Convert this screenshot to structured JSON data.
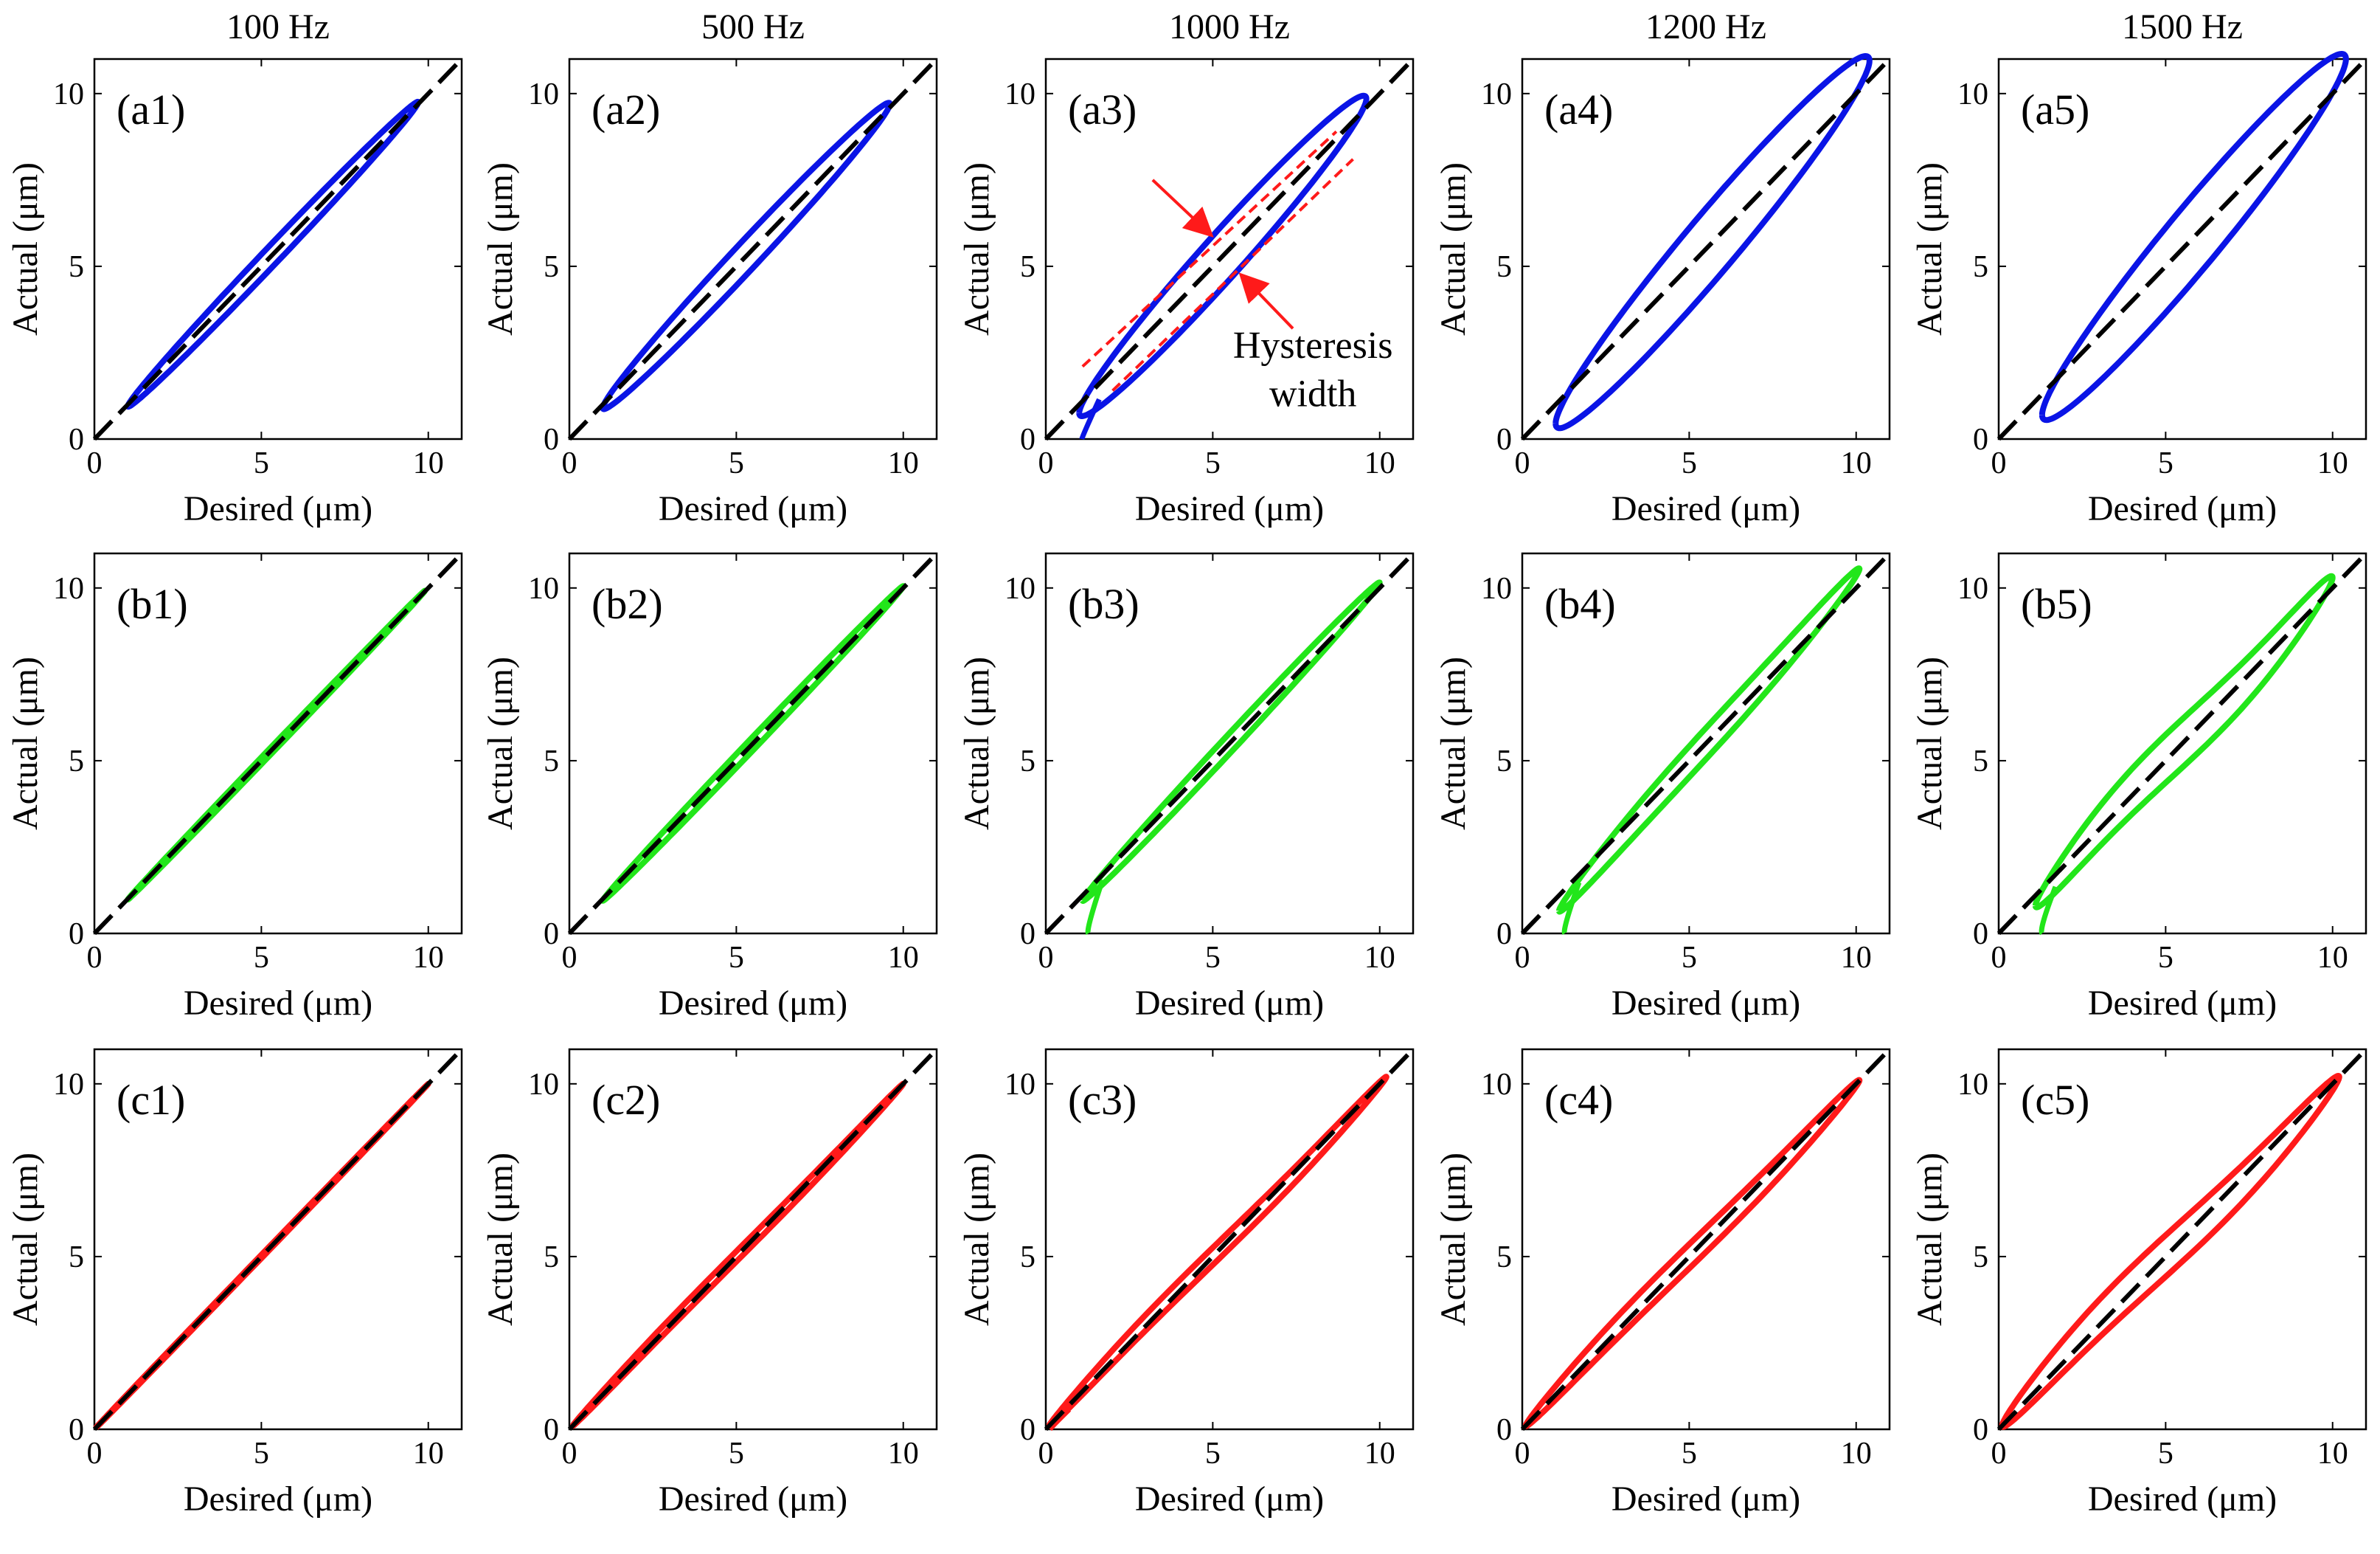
{
  "column_titles": [
    "100 Hz",
    "500 Hz",
    "1000 Hz",
    "1200 Hz",
    "1500 Hz"
  ],
  "row_colors": [
    "#0a14e6",
    "#22e61a",
    "#ff1a1a"
  ],
  "ideal_line_color": "#000000",
  "chart_data": {
    "type": "line",
    "layout_grid": "3 rows x 5 columns",
    "xlabel": "Desired (μm)",
    "ylabel": "Actual (μm)",
    "xlim": [
      0,
      11
    ],
    "ylim": [
      0,
      11
    ],
    "xticks": [
      0,
      5,
      10
    ],
    "yticks": [
      0,
      5,
      10
    ],
    "tick_labels": [
      "0",
      "5",
      "10"
    ],
    "reference_line": {
      "name": "ideal",
      "style": "dashed",
      "x": [
        0,
        11
      ],
      "y": [
        0,
        11
      ]
    },
    "annotation": {
      "panel": "a3",
      "lines": [
        "Hysteresis",
        "width"
      ]
    },
    "panels": [
      {
        "label": "(a1)",
        "row": 0,
        "col": 0,
        "amin": 1,
        "amax": 9.7,
        "width": 0.35,
        "offset": 0.05,
        "s_curve": 0.0,
        "low_hook": 0.0
      },
      {
        "label": "(a2)",
        "row": 0,
        "col": 1,
        "amin": 1,
        "amax": 9.6,
        "width": 0.55,
        "offset": 0.1,
        "s_curve": 0.0,
        "low_hook": 0.0
      },
      {
        "label": "(a3)",
        "row": 0,
        "col": 2,
        "amin": 1,
        "amax": 9.6,
        "width": 0.9,
        "offset": 0.25,
        "s_curve": 0.0,
        "low_hook": 0.6
      },
      {
        "label": "(a4)",
        "row": 0,
        "col": 3,
        "amin": 1,
        "amax": 10.4,
        "width": 1.2,
        "offset": 0.55,
        "s_curve": 0.0,
        "low_hook": 0.0
      },
      {
        "label": "(a5)",
        "row": 0,
        "col": 4,
        "amin": 1.3,
        "amax": 10.4,
        "width": 1.25,
        "offset": 0.6,
        "s_curve": 0.0,
        "low_hook": 0.0
      },
      {
        "label": "(b1)",
        "row": 1,
        "col": 0,
        "amin": 1,
        "amax": 9.9,
        "width": 0.1,
        "offset": 0.02,
        "s_curve": 0.0,
        "low_hook": 0.0
      },
      {
        "label": "(b2)",
        "row": 1,
        "col": 1,
        "amin": 1,
        "amax": 10.0,
        "width": 0.2,
        "offset": 0.05,
        "s_curve": 0.0,
        "low_hook": 0.0
      },
      {
        "label": "(b3)",
        "row": 1,
        "col": 2,
        "amin": 1.1,
        "amax": 10.0,
        "width": 0.3,
        "offset": 0.15,
        "s_curve": 0.0,
        "low_hook": 0.9
      },
      {
        "label": "(b4)",
        "row": 1,
        "col": 3,
        "amin": 1.1,
        "amax": 10.1,
        "width": 0.45,
        "offset": 0.45,
        "s_curve": 0.15,
        "low_hook": 0.9
      },
      {
        "label": "(b5)",
        "row": 1,
        "col": 4,
        "amin": 1.1,
        "amax": 10.0,
        "width": 0.7,
        "offset": 0.3,
        "s_curve": 0.5,
        "low_hook": 1.0
      },
      {
        "label": "(c1)",
        "row": 2,
        "col": 0,
        "amin": 0.05,
        "amax": 10.0,
        "width": 0.05,
        "offset": 0.0,
        "s_curve": 0.0,
        "low_hook": 0.0
      },
      {
        "label": "(c2)",
        "row": 2,
        "col": 1,
        "amin": 0.1,
        "amax": 10.0,
        "width": 0.15,
        "offset": 0.0,
        "s_curve": 0.1,
        "low_hook": 0.0
      },
      {
        "label": "(c3)",
        "row": 2,
        "col": 2,
        "amin": 0.1,
        "amax": 10.2,
        "width": 0.25,
        "offset": 0.0,
        "s_curve": 0.2,
        "low_hook": 0.4
      },
      {
        "label": "(c4)",
        "row": 2,
        "col": 3,
        "amin": 0.1,
        "amax": 10.1,
        "width": 0.35,
        "offset": 0.0,
        "s_curve": 0.2,
        "low_hook": 0.0
      },
      {
        "label": "(c5)",
        "row": 2,
        "col": 4,
        "amin": 0.1,
        "amax": 10.2,
        "width": 0.6,
        "offset": 0.0,
        "s_curve": 0.4,
        "low_hook": 0.0
      }
    ]
  }
}
